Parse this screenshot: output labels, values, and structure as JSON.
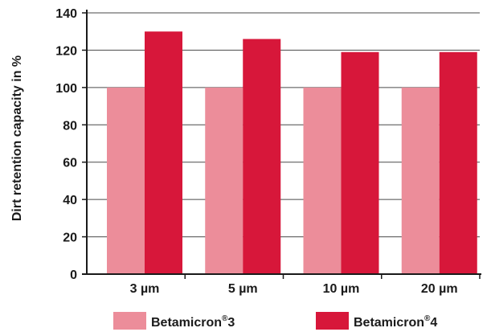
{
  "chart_data": {
    "type": "bar",
    "title": "",
    "xlabel": "",
    "ylabel": "Dirt retention capacity in %",
    "categories": [
      "3 µm",
      "5 µm",
      "10 µm",
      "20 µm"
    ],
    "series": [
      {
        "name": "Betamicron",
        "name_sup": "®",
        "name_suffix": "3",
        "color": "#ec8d9a",
        "values": [
          100,
          100,
          100,
          100
        ]
      },
      {
        "name": "Betamicron",
        "name_sup": "®",
        "name_suffix": "4",
        "color": "#d7173a",
        "values": [
          130,
          126,
          119,
          119
        ]
      }
    ],
    "ylim": [
      0,
      140
    ],
    "yticks": [
      0,
      20,
      40,
      60,
      80,
      100,
      120,
      140
    ],
    "grid": true,
    "legend": "bottom"
  }
}
